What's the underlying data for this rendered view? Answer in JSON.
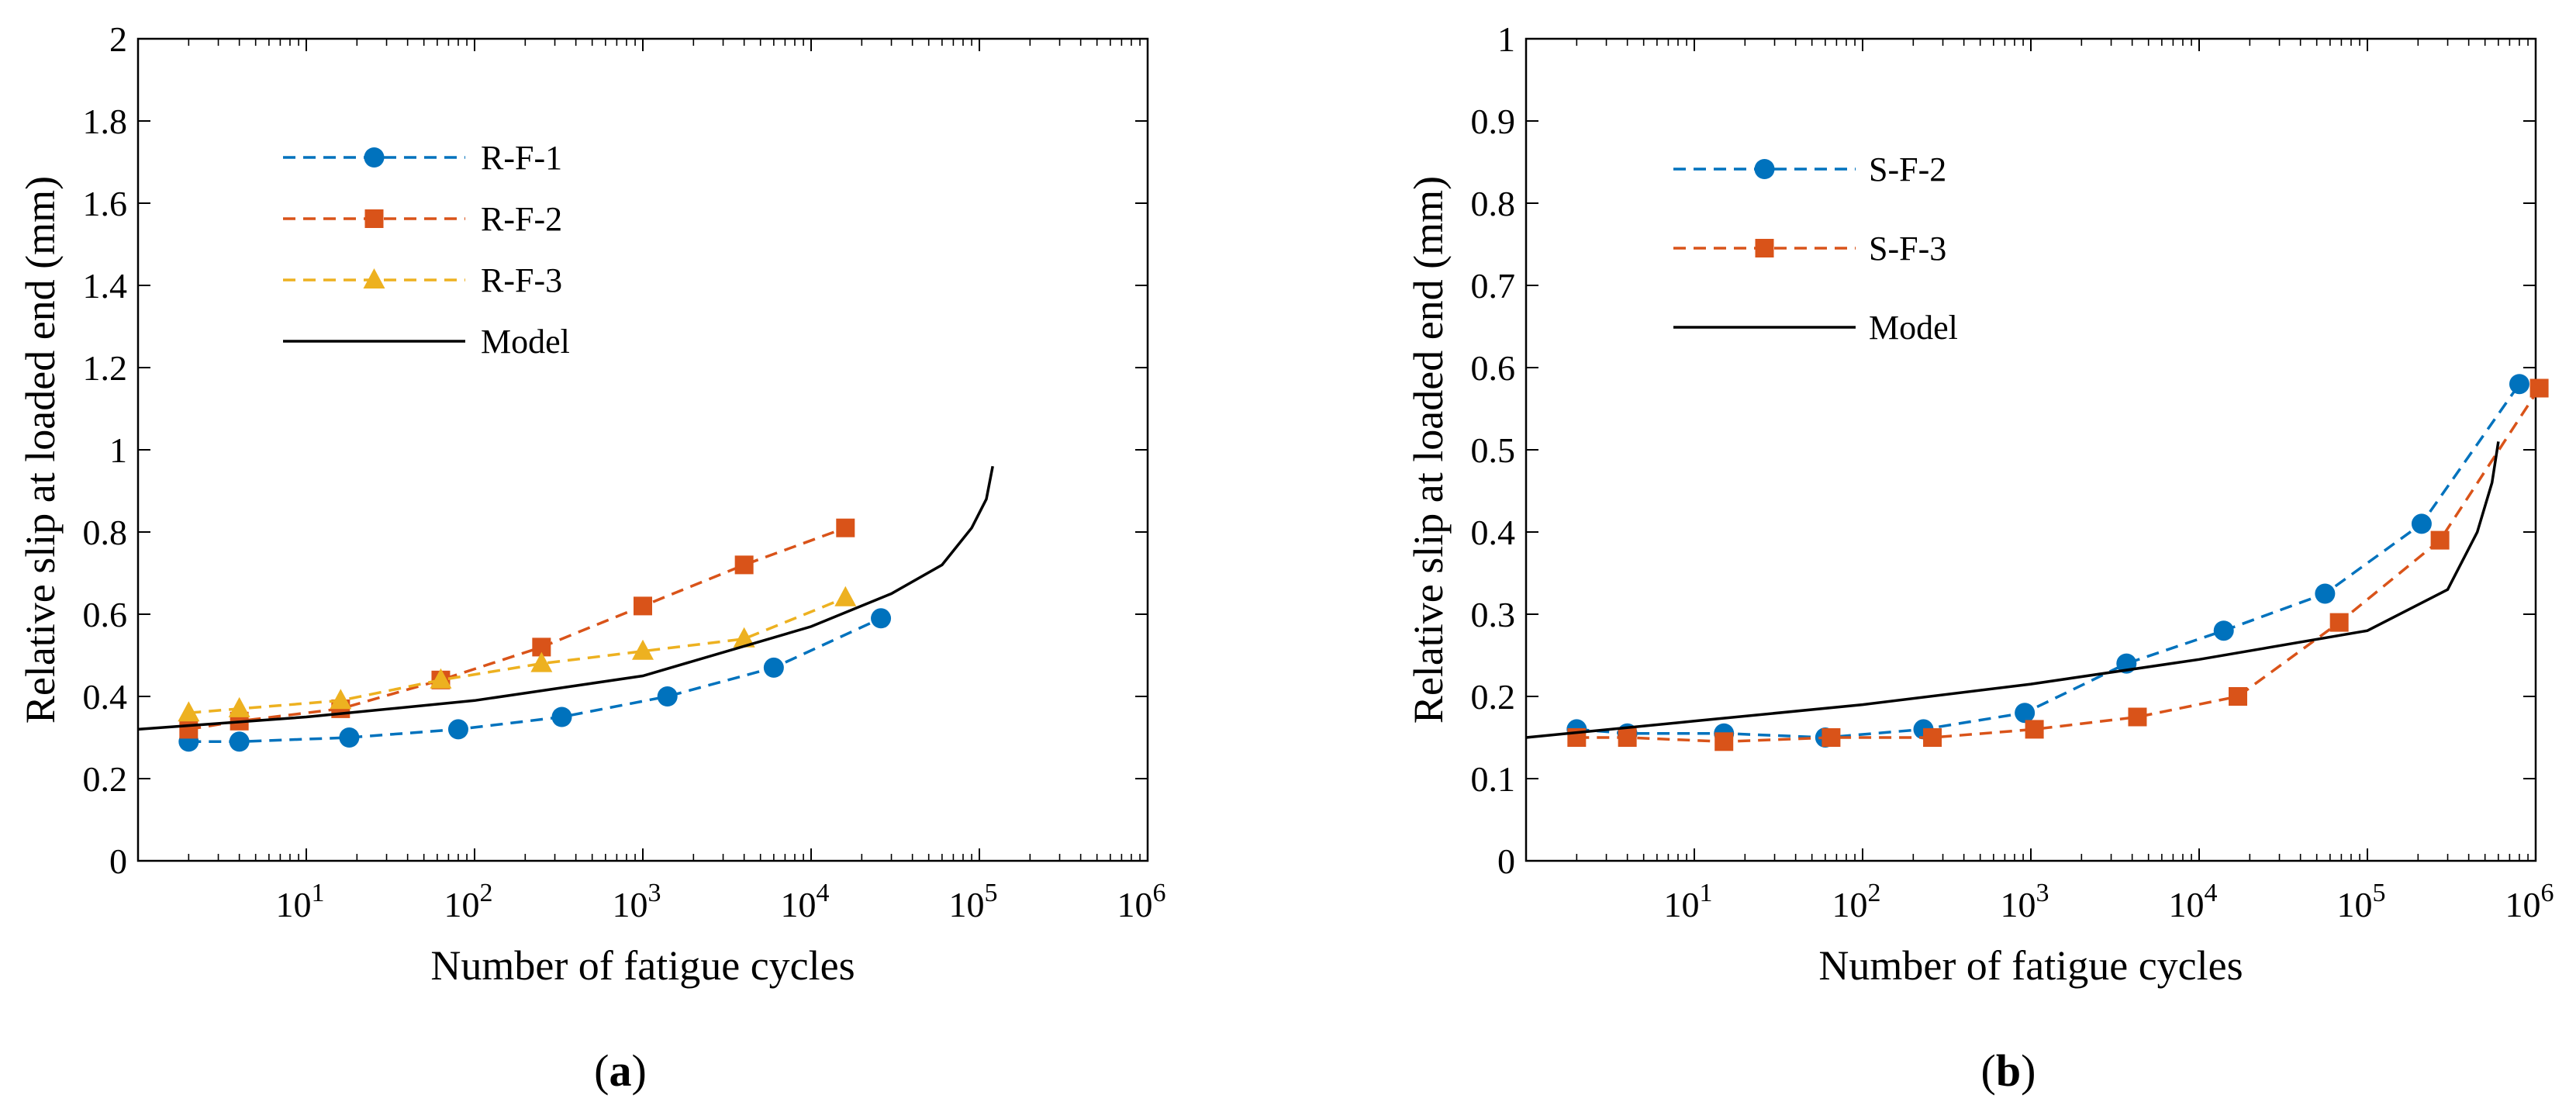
{
  "chart_data": [
    {
      "id": "a",
      "type": "line",
      "panel_label": "a",
      "title": "",
      "xlabel": "Number of fatigue cycles",
      "ylabel": "Relative slip at loaded end (mm)",
      "xscale": "log",
      "xlim": [
        1,
        1000000
      ],
      "ylim": [
        0,
        2
      ],
      "x_ticks": [
        10,
        100,
        1000,
        10000,
        100000,
        1000000
      ],
      "y_ticks": [
        0,
        0.2,
        0.4,
        0.6,
        0.8,
        1,
        1.2,
        1.4,
        1.6,
        1.8,
        2
      ],
      "y_tick_labels": [
        "0",
        "0.2",
        "0.4",
        "0.6",
        "0.8",
        "1",
        "1.2",
        "1.4",
        "1.6",
        "1.8",
        "2"
      ],
      "grid": false,
      "legend_position": "top-left",
      "series": [
        {
          "name": "R-F-1",
          "style": "dashed",
          "marker": "circle",
          "color": "#0072BD",
          "x": [
            2,
            4,
            18,
            80,
            330,
            1400,
            6000,
            26000
          ],
          "y": [
            0.29,
            0.29,
            0.3,
            0.32,
            0.35,
            0.4,
            0.47,
            0.59
          ]
        },
        {
          "name": "R-F-2",
          "style": "dashed",
          "marker": "square",
          "color": "#D95319",
          "x": [
            2,
            4,
            16,
            63,
            250,
            1000,
            4000,
            16000
          ],
          "y": [
            0.32,
            0.34,
            0.37,
            0.44,
            0.52,
            0.62,
            0.72,
            0.81
          ]
        },
        {
          "name": "R-F-3",
          "style": "dashed",
          "marker": "triangle",
          "color": "#EDB120",
          "x": [
            2,
            4,
            16,
            63,
            250,
            1000,
            4000,
            16000
          ],
          "y": [
            0.36,
            0.37,
            0.39,
            0.44,
            0.48,
            0.51,
            0.54,
            0.64
          ]
        },
        {
          "name": "Model",
          "style": "solid",
          "marker": "none",
          "color": "#000000",
          "x": [
            1,
            10,
            100,
            1000,
            10000,
            30000,
            60000,
            90000,
            110000,
            120000
          ],
          "y": [
            0.32,
            0.35,
            0.39,
            0.45,
            0.57,
            0.65,
            0.72,
            0.81,
            0.88,
            0.96
          ]
        }
      ]
    },
    {
      "id": "b",
      "type": "line",
      "panel_label": "b",
      "title": "",
      "xlabel": "Number of fatigue cycles",
      "ylabel": "Relative slip at loaded end (mm)",
      "xscale": "log",
      "xlim": [
        1,
        1000000
      ],
      "ylim": [
        0,
        1
      ],
      "x_ticks": [
        10,
        100,
        1000,
        10000,
        100000,
        1000000
      ],
      "y_ticks": [
        0,
        0.1,
        0.2,
        0.3,
        0.4,
        0.5,
        0.6,
        0.7,
        0.8,
        0.9,
        1
      ],
      "y_tick_labels": [
        "0",
        "0.1",
        "0.2",
        "0.3",
        "0.4",
        "0.5",
        "0.6",
        "0.7",
        "0.8",
        "0.9",
        "1"
      ],
      "grid": false,
      "legend_position": "top-left",
      "series": [
        {
          "name": "S-F-2",
          "style": "dashed",
          "marker": "circle",
          "color": "#0072BD",
          "x": [
            2,
            4,
            15,
            60,
            230,
            920,
            3700,
            14000,
            56000,
            210000,
            800000
          ],
          "y": [
            0.16,
            0.155,
            0.155,
            0.15,
            0.16,
            0.18,
            0.24,
            0.28,
            0.325,
            0.41,
            0.58
          ]
        },
        {
          "name": "S-F-3",
          "style": "dashed",
          "marker": "square",
          "color": "#D95319",
          "x": [
            2,
            4,
            15,
            65,
            260,
            1050,
            4300,
            17000,
            68000,
            270000,
            1050000
          ],
          "y": [
            0.15,
            0.15,
            0.145,
            0.15,
            0.15,
            0.16,
            0.175,
            0.2,
            0.29,
            0.39,
            0.575
          ]
        },
        {
          "name": "Model",
          "style": "solid",
          "marker": "none",
          "color": "#000000",
          "x": [
            1,
            10,
            100,
            1000,
            10000,
            100000,
            300000,
            450000,
            550000,
            600000
          ],
          "y": [
            0.15,
            0.17,
            0.19,
            0.215,
            0.245,
            0.28,
            0.33,
            0.4,
            0.46,
            0.51
          ]
        }
      ]
    }
  ]
}
